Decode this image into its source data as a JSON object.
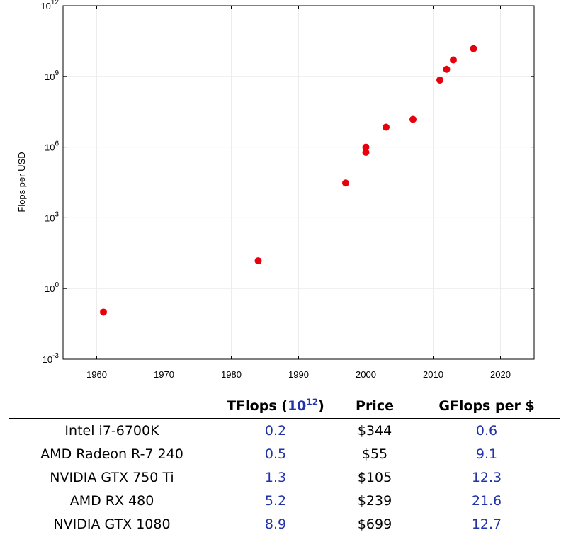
{
  "chart_data": {
    "type": "scatter",
    "ylabel": "Flops per USD",
    "xlabel": "",
    "title": "",
    "x_ticks": [
      "1960",
      "1970",
      "1980",
      "1990",
      "2000",
      "2010",
      "2020"
    ],
    "y_ticks": [
      {
        "base": "10",
        "exp": "12"
      },
      {
        "base": "10",
        "exp": "9"
      },
      {
        "base": "10",
        "exp": "6"
      },
      {
        "base": "10",
        "exp": "3"
      },
      {
        "base": "10",
        "exp": "0"
      },
      {
        "base": "10",
        "exp": "-3"
      }
    ],
    "xlim": [
      1955,
      2025
    ],
    "ylim_log10": [
      -3,
      12
    ],
    "y_scale": "log",
    "grid": true,
    "marker_color": "#e8000b",
    "points": [
      {
        "x": 1961,
        "y": 0.1
      },
      {
        "x": 1984,
        "y": 15
      },
      {
        "x": 1997,
        "y": 30000
      },
      {
        "x": 2000,
        "y": 1000000
      },
      {
        "x": 2000,
        "y": 600000
      },
      {
        "x": 2003,
        "y": 7000000
      },
      {
        "x": 2007,
        "y": 15000000
      },
      {
        "x": 2011,
        "y": 700000000
      },
      {
        "x": 2012,
        "y": 2000000000
      },
      {
        "x": 2013,
        "y": 5000000000
      },
      {
        "x": 2016,
        "y": 15000000000
      }
    ]
  },
  "table": {
    "headers": {
      "device": "",
      "tflops": "TFlops (",
      "tflops_unit_base": "10",
      "tflops_unit_exp": "12",
      "tflops_close": ")",
      "price": "Price",
      "gflops_per_dollar": "GFlops per $"
    },
    "rows": [
      {
        "device": "Intel i7-6700K",
        "tflops": "0.2",
        "price": "$344",
        "gflops": "0.6"
      },
      {
        "device": "AMD Radeon R-7 240",
        "tflops": "0.5",
        "price": "$55",
        "gflops": "9.1"
      },
      {
        "device": "NVIDIA GTX 750 Ti",
        "tflops": "1.3",
        "price": "$105",
        "gflops": "12.3"
      },
      {
        "device": "AMD RX 480",
        "tflops": "5.2",
        "price": "$239",
        "gflops": "21.6"
      },
      {
        "device": "NVIDIA GTX 1080",
        "tflops": "8.9",
        "price": "$699",
        "gflops": "12.7"
      }
    ],
    "accent_color": "#2233aa"
  }
}
